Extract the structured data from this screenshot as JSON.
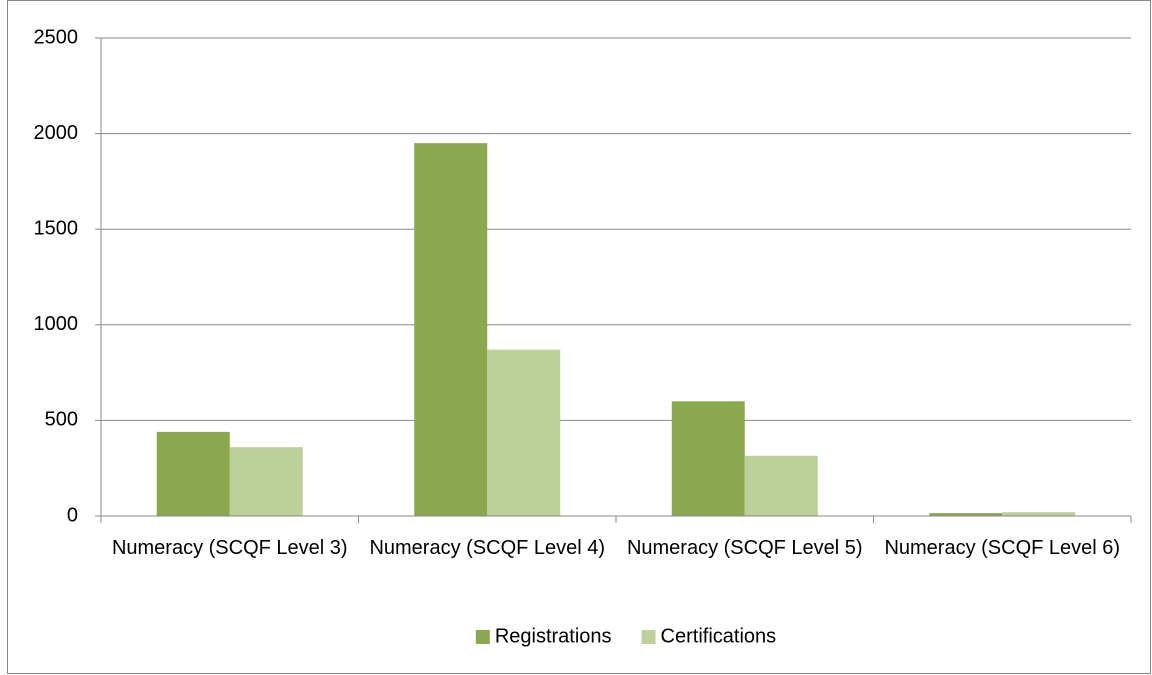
{
  "chart_data": {
    "type": "bar",
    "categories": [
      "Numeracy (SCQF Level 3)",
      "Numeracy (SCQF Level 4)",
      "Numeracy (SCQF Level 5)",
      "Numeracy (SCQF Level 6)"
    ],
    "series": [
      {
        "name": "Registrations",
        "color": "#8aa84e",
        "values": [
          440,
          1950,
          600,
          15
        ]
      },
      {
        "name": "Certifications",
        "color": "#bcd09a",
        "values": [
          360,
          870,
          315,
          20
        ]
      }
    ],
    "ylim": [
      0,
      2500
    ],
    "yticks": [
      0,
      500,
      1000,
      1500,
      2000,
      2500
    ],
    "grid": true,
    "legend": "bottom"
  }
}
